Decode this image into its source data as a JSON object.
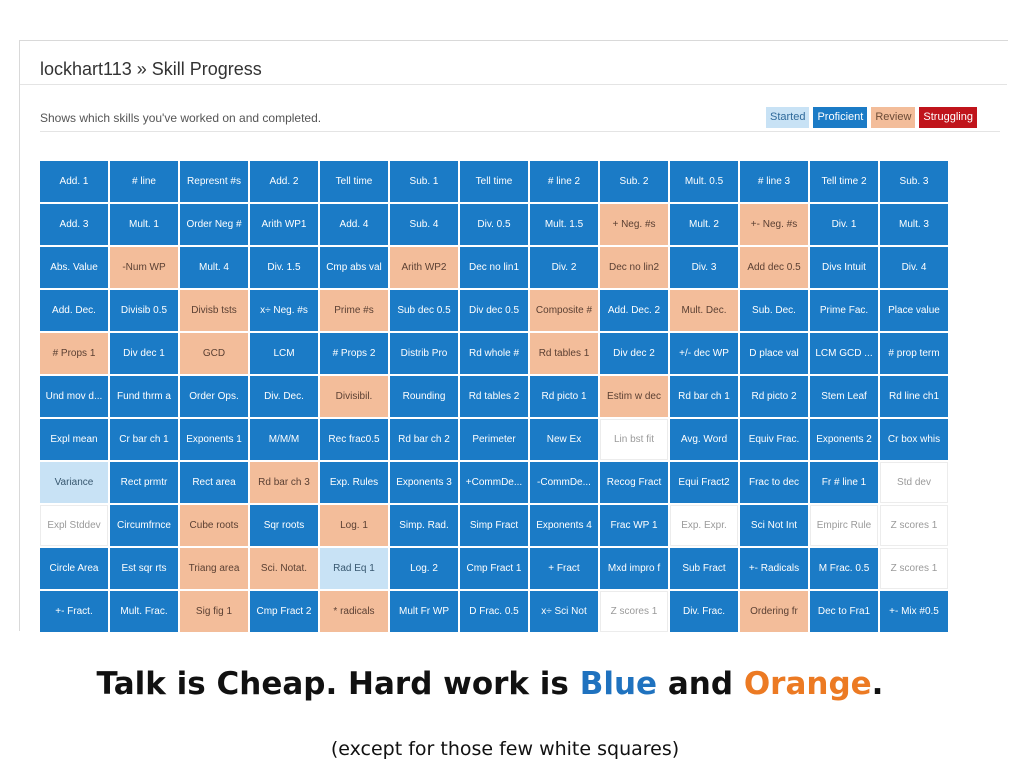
{
  "header": {
    "title": "lockhart113 » Skill Progress",
    "description": "Shows which skills you've worked on and completed."
  },
  "legend": [
    {
      "label": "Started",
      "bg": "#c8e2f5",
      "fg": "#2f6a9b"
    },
    {
      "label": "Proficient",
      "bg": "#1b7bc6",
      "fg": "#ffffff"
    },
    {
      "label": "Review",
      "bg": "#f3bd9a",
      "fg": "#6b4a36"
    },
    {
      "label": "Struggling",
      "bg": "#c0141b",
      "fg": "#ffffff"
    }
  ],
  "status_colors": {
    "blue": "#1b7bc6",
    "orange": "#f3bd9a",
    "light": "#c8e2f5",
    "white": "#ffffff"
  },
  "skills": [
    [
      {
        "label": "Add. 1",
        "status": "blue"
      },
      {
        "label": "# line",
        "status": "blue"
      },
      {
        "label": "Represnt #s",
        "status": "blue"
      },
      {
        "label": "Add. 2",
        "status": "blue"
      },
      {
        "label": "Tell time",
        "status": "blue"
      },
      {
        "label": "Sub. 1",
        "status": "blue"
      },
      {
        "label": "Tell time",
        "status": "blue"
      },
      {
        "label": "# line 2",
        "status": "blue"
      },
      {
        "label": "Sub. 2",
        "status": "blue"
      },
      {
        "label": "Mult. 0.5",
        "status": "blue"
      },
      {
        "label": "# line 3",
        "status": "blue"
      },
      {
        "label": "Tell time 2",
        "status": "blue"
      },
      {
        "label": "Sub. 3",
        "status": "blue"
      }
    ],
    [
      {
        "label": "Add. 3",
        "status": "blue"
      },
      {
        "label": "Mult. 1",
        "status": "blue"
      },
      {
        "label": "Order Neg #",
        "status": "blue"
      },
      {
        "label": "Arith WP1",
        "status": "blue"
      },
      {
        "label": "Add. 4",
        "status": "blue"
      },
      {
        "label": "Sub. 4",
        "status": "blue"
      },
      {
        "label": "Div. 0.5",
        "status": "blue"
      },
      {
        "label": "Mult. 1.5",
        "status": "blue"
      },
      {
        "label": "+ Neg. #s",
        "status": "orange"
      },
      {
        "label": "Mult. 2",
        "status": "blue"
      },
      {
        "label": "+- Neg. #s",
        "status": "orange"
      },
      {
        "label": "Div. 1",
        "status": "blue"
      },
      {
        "label": "Mult. 3",
        "status": "blue"
      }
    ],
    [
      {
        "label": "Abs. Value",
        "status": "blue"
      },
      {
        "label": "-Num WP",
        "status": "orange"
      },
      {
        "label": "Mult. 4",
        "status": "blue"
      },
      {
        "label": "Div. 1.5",
        "status": "blue"
      },
      {
        "label": "Cmp abs val",
        "status": "blue"
      },
      {
        "label": "Arith WP2",
        "status": "orange"
      },
      {
        "label": "Dec no lin1",
        "status": "blue"
      },
      {
        "label": "Div. 2",
        "status": "blue"
      },
      {
        "label": "Dec no lin2",
        "status": "orange"
      },
      {
        "label": "Div. 3",
        "status": "blue"
      },
      {
        "label": "Add dec 0.5",
        "status": "orange"
      },
      {
        "label": "Divs Intuit",
        "status": "blue"
      },
      {
        "label": "Div. 4",
        "status": "blue"
      }
    ],
    [
      {
        "label": "Add. Dec.",
        "status": "blue"
      },
      {
        "label": "Divisib 0.5",
        "status": "blue"
      },
      {
        "label": "Divisb tsts",
        "status": "orange"
      },
      {
        "label": "x÷ Neg. #s",
        "status": "blue"
      },
      {
        "label": "Prime #s",
        "status": "orange"
      },
      {
        "label": "Sub dec 0.5",
        "status": "blue"
      },
      {
        "label": "Div dec 0.5",
        "status": "blue"
      },
      {
        "label": "Composite #",
        "status": "orange"
      },
      {
        "label": "Add. Dec. 2",
        "status": "blue"
      },
      {
        "label": "Mult. Dec.",
        "status": "orange"
      },
      {
        "label": "Sub. Dec.",
        "status": "blue"
      },
      {
        "label": "Prime Fac.",
        "status": "blue"
      },
      {
        "label": "Place value",
        "status": "blue"
      }
    ],
    [
      {
        "label": "# Props 1",
        "status": "orange"
      },
      {
        "label": "Div dec 1",
        "status": "blue"
      },
      {
        "label": "GCD",
        "status": "orange"
      },
      {
        "label": "LCM",
        "status": "blue"
      },
      {
        "label": "# Props 2",
        "status": "blue"
      },
      {
        "label": "Distrib Pro",
        "status": "blue"
      },
      {
        "label": "Rd whole #",
        "status": "blue"
      },
      {
        "label": "Rd tables 1",
        "status": "orange"
      },
      {
        "label": "Div dec 2",
        "status": "blue"
      },
      {
        "label": "+/- dec WP",
        "status": "blue"
      },
      {
        "label": "D place val",
        "status": "blue"
      },
      {
        "label": "LCM GCD ...",
        "status": "blue"
      },
      {
        "label": "# prop term",
        "status": "blue"
      }
    ],
    [
      {
        "label": "Und mov d...",
        "status": "blue"
      },
      {
        "label": "Fund thrm a",
        "status": "blue"
      },
      {
        "label": "Order Ops.",
        "status": "blue"
      },
      {
        "label": "Div. Dec.",
        "status": "blue"
      },
      {
        "label": "Divisibil.",
        "status": "orange"
      },
      {
        "label": "Rounding",
        "status": "blue"
      },
      {
        "label": "Rd tables 2",
        "status": "blue"
      },
      {
        "label": "Rd picto 1",
        "status": "blue"
      },
      {
        "label": "Estim w dec",
        "status": "orange"
      },
      {
        "label": "Rd bar ch 1",
        "status": "blue"
      },
      {
        "label": "Rd picto 2",
        "status": "blue"
      },
      {
        "label": "Stem Leaf",
        "status": "blue"
      },
      {
        "label": "Rd line ch1",
        "status": "blue"
      }
    ],
    [
      {
        "label": "Expl mean",
        "status": "blue"
      },
      {
        "label": "Cr bar ch 1",
        "status": "blue"
      },
      {
        "label": "Exponents 1",
        "status": "blue"
      },
      {
        "label": "M/M/M",
        "status": "blue"
      },
      {
        "label": "Rec frac0.5",
        "status": "blue"
      },
      {
        "label": "Rd bar ch 2",
        "status": "blue"
      },
      {
        "label": "Perimeter",
        "status": "blue"
      },
      {
        "label": "New Ex",
        "status": "blue"
      },
      {
        "label": "Lin bst fit",
        "status": "white"
      },
      {
        "label": "Avg. Word",
        "status": "blue"
      },
      {
        "label": "Equiv Frac.",
        "status": "blue"
      },
      {
        "label": "Exponents 2",
        "status": "blue"
      },
      {
        "label": "Cr box whis",
        "status": "blue"
      }
    ],
    [
      {
        "label": "Variance",
        "status": "light"
      },
      {
        "label": "Rect prmtr",
        "status": "blue"
      },
      {
        "label": "Rect area",
        "status": "blue"
      },
      {
        "label": "Rd bar ch 3",
        "status": "orange"
      },
      {
        "label": "Exp. Rules",
        "status": "blue"
      },
      {
        "label": "Exponents 3",
        "status": "blue"
      },
      {
        "label": "+CommDe...",
        "status": "blue"
      },
      {
        "label": "-CommDe...",
        "status": "blue"
      },
      {
        "label": "Recog Fract",
        "status": "blue"
      },
      {
        "label": "Equi Fract2",
        "status": "blue"
      },
      {
        "label": "Frac to dec",
        "status": "blue"
      },
      {
        "label": "Fr # line 1",
        "status": "blue"
      },
      {
        "label": "Std dev",
        "status": "white"
      }
    ],
    [
      {
        "label": "Expl Stddev",
        "status": "white"
      },
      {
        "label": "Circumfrnce",
        "status": "blue"
      },
      {
        "label": "Cube roots",
        "status": "orange"
      },
      {
        "label": "Sqr roots",
        "status": "blue"
      },
      {
        "label": "Log. 1",
        "status": "orange"
      },
      {
        "label": "Simp. Rad.",
        "status": "blue"
      },
      {
        "label": "Simp Fract",
        "status": "blue"
      },
      {
        "label": "Exponents 4",
        "status": "blue"
      },
      {
        "label": "Frac WP 1",
        "status": "blue"
      },
      {
        "label": "Exp. Expr.",
        "status": "white"
      },
      {
        "label": "Sci Not Int",
        "status": "blue"
      },
      {
        "label": "Empirc Rule",
        "status": "white"
      },
      {
        "label": "Z scores 1",
        "status": "white"
      }
    ],
    [
      {
        "label": "Circle Area",
        "status": "blue"
      },
      {
        "label": "Est sqr rts",
        "status": "blue"
      },
      {
        "label": "Triang area",
        "status": "orange"
      },
      {
        "label": "Sci. Notat.",
        "status": "orange"
      },
      {
        "label": "Rad Eq 1",
        "status": "light"
      },
      {
        "label": "Log. 2",
        "status": "blue"
      },
      {
        "label": "Cmp Fract 1",
        "status": "blue"
      },
      {
        "label": "+ Fract",
        "status": "blue"
      },
      {
        "label": "Mxd impro f",
        "status": "blue"
      },
      {
        "label": "Sub Fract",
        "status": "blue"
      },
      {
        "label": "+- Radicals",
        "status": "blue"
      },
      {
        "label": "M Frac. 0.5",
        "status": "blue"
      },
      {
        "label": "Z scores 1",
        "status": "white"
      }
    ],
    [
      {
        "label": "+- Fract.",
        "status": "blue"
      },
      {
        "label": "Mult. Frac.",
        "status": "blue"
      },
      {
        "label": "Sig fig 1",
        "status": "orange"
      },
      {
        "label": "Cmp Fract 2",
        "status": "blue"
      },
      {
        "label": "* radicals",
        "status": "orange"
      },
      {
        "label": "Mult Fr WP",
        "status": "blue"
      },
      {
        "label": "D Frac. 0.5",
        "status": "blue"
      },
      {
        "label": "x÷ Sci Not",
        "status": "blue"
      },
      {
        "label": "Z scores 1",
        "status": "white"
      },
      {
        "label": "Div. Frac.",
        "status": "blue"
      },
      {
        "label": "Ordering fr",
        "status": "orange"
      },
      {
        "label": "Dec to Fra1",
        "status": "blue"
      },
      {
        "label": "+- Mix #0.5",
        "status": "blue"
      }
    ]
  ],
  "slide": {
    "headline_part1": "Talk is Cheap. Hard work is ",
    "headline_blue": "Blue",
    "headline_and": " and ",
    "headline_orange": "Orange",
    "headline_end": ".",
    "subline": "(except for those few white squares)"
  }
}
